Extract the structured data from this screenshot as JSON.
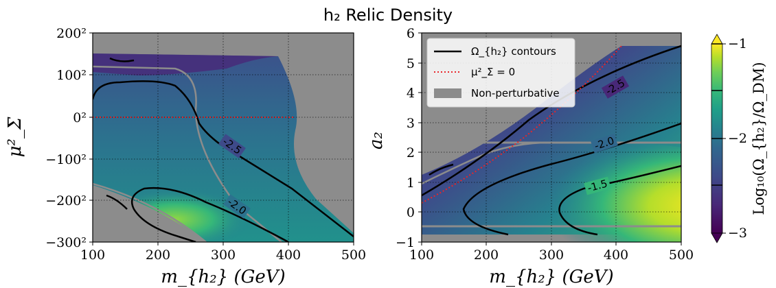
{
  "title": "h₂ Relic Density",
  "colors": {
    "background": "#8c8c8c",
    "grid": "#000000",
    "contour": "#000000",
    "mu_zero": "#e8262a",
    "nonpert": "#8c8c8c",
    "colormap": [
      "#440154",
      "#482878",
      "#3e4a89",
      "#31688e",
      "#26828e",
      "#1f9e89",
      "#35b779",
      "#6ece58",
      "#b5de2b",
      "#fde725"
    ]
  },
  "chart_data": [
    {
      "type": "heatmap",
      "panel": "left",
      "xlabel": "m_{h₂} (GeV)",
      "ylabel": "μ²_Σ",
      "xlim": [
        100,
        500
      ],
      "ylim": [
        "-300²",
        "200²"
      ],
      "xticks": [
        "100",
        "200",
        "300",
        "400",
        "500"
      ],
      "yticks": [
        "−300²",
        "−200²",
        "−100²",
        "0²",
        "100²",
        "200²"
      ],
      "grid": true,
      "contour_labels": [
        "-2.5",
        "-2.0"
      ],
      "series": [
        {
          "name": "μ²_Σ = 0",
          "x": [
            100,
            410
          ],
          "y": [
            "0²",
            "0²"
          ]
        }
      ]
    },
    {
      "type": "heatmap",
      "panel": "right",
      "xlabel": "m_{h₂} (GeV)",
      "ylabel": "a₂",
      "xlim": [
        100,
        500
      ],
      "ylim": [
        -1,
        6
      ],
      "xticks": [
        "100",
        "200",
        "300",
        "400",
        "500"
      ],
      "yticks": [
        "−1",
        "0",
        "1",
        "2",
        "3",
        "4",
        "5",
        "6"
      ],
      "grid": true,
      "contour_labels": [
        "-2.5",
        "-2.0",
        "-1.5"
      ],
      "legend": {
        "position": "top-left",
        "entries": [
          {
            "label": "Ω_{h₂} contours",
            "style": "solid-black"
          },
          {
            "label": "μ²_Σ = 0",
            "style": "dotted-red"
          },
          {
            "label": "Non-perturbative",
            "style": "gray-band"
          }
        ]
      },
      "series": [
        {
          "name": "Non-perturbative upper",
          "x": [
            100,
            500
          ],
          "y": [
            2.35,
            2.35
          ]
        },
        {
          "name": "Non-perturbative lower",
          "x": [
            100,
            500
          ],
          "y": [
            -0.5,
            -0.5
          ]
        }
      ]
    }
  ],
  "colorbar": {
    "label": "Log₁₀(Ω_{h₂}/Ω_DM)",
    "range": [
      -3,
      -1
    ],
    "ticks": [
      "−1",
      "−2",
      "−3"
    ],
    "extend": "both"
  }
}
